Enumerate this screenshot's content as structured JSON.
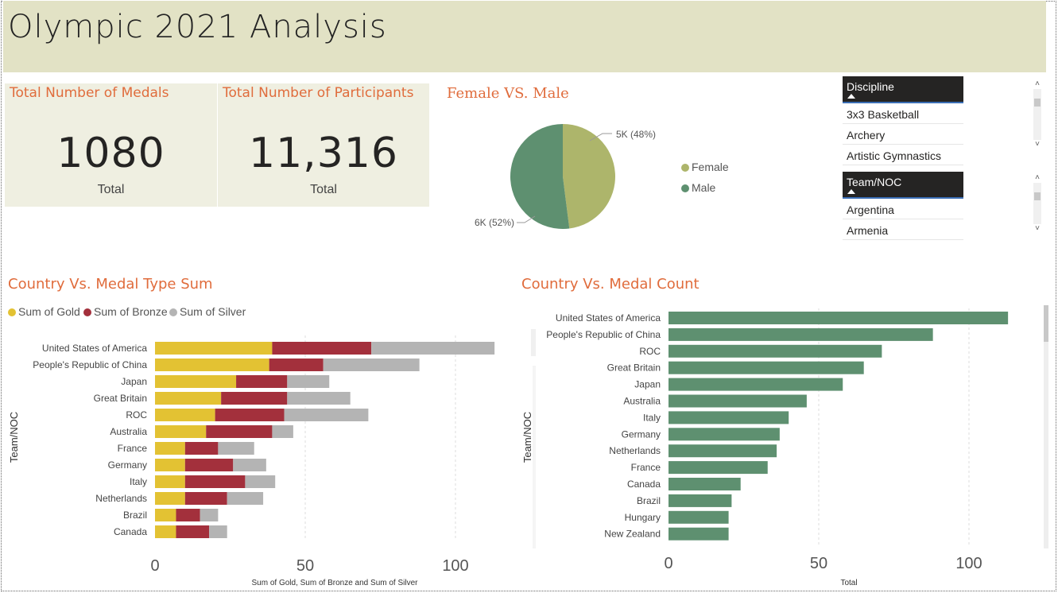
{
  "title": "Olympic 2021 Analysis",
  "cards": [
    {
      "title": "Total Number of Medals",
      "value": "1080",
      "label": "Total"
    },
    {
      "title": "Total Number of Participants",
      "value": "11,316",
      "label": "Total"
    }
  ],
  "pie": {
    "title": "Female VS. Male",
    "female_label": "5K (48%)",
    "male_label": "6K (52%)",
    "legend": [
      "Female",
      "Male"
    ],
    "colors": {
      "female": "#adb56b",
      "male": "#5e9070"
    }
  },
  "slicers": {
    "discipline": {
      "header": "Discipline",
      "items": [
        "3x3 Basketball",
        "Archery",
        "Artistic Gymnastics"
      ]
    },
    "team": {
      "header": "Team/NOC",
      "items": [
        "Argentina",
        "Armenia"
      ]
    }
  },
  "stacked": {
    "title": "Country Vs. Medal Type Sum",
    "legend": [
      "Sum of Gold",
      "Sum of Bronze",
      "Sum of Silver"
    ],
    "ylabel": "Team/NOC",
    "xlabel": "Sum of Gold, Sum of Bronze and Sum of Silver",
    "ticks": [
      "0",
      "50",
      "100"
    ]
  },
  "count": {
    "title": "Country Vs. Medal Count",
    "ylabel": "Team/NOC",
    "xlabel": "Total",
    "ticks": [
      "0",
      "50",
      "100"
    ]
  },
  "chart_data": [
    {
      "type": "pie",
      "title": "Female VS. Male",
      "categories": [
        "Female",
        "Male"
      ],
      "values": [
        48,
        52
      ],
      "colors": [
        "#adb56b",
        "#5e9070"
      ],
      "legend_position": "right"
    },
    {
      "type": "bar",
      "orientation": "horizontal",
      "stacked": true,
      "title": "Country Vs. Medal Type Sum",
      "xlabel": "Sum of Gold, Sum of Bronze and Sum of Silver",
      "ylabel": "Team/NOC",
      "xlim": [
        0,
        120
      ],
      "categories": [
        "United States of America",
        "People's Republic of China",
        "Japan",
        "Great Britain",
        "ROC",
        "Australia",
        "France",
        "Germany",
        "Italy",
        "Netherlands",
        "Brazil",
        "Canada"
      ],
      "series": [
        {
          "name": "Sum of Gold",
          "color": "#e3c233",
          "values": [
            39,
            38,
            27,
            22,
            20,
            17,
            10,
            10,
            10,
            10,
            7,
            7
          ]
        },
        {
          "name": "Sum of Bronze",
          "color": "#a3303c",
          "values": [
            33,
            18,
            17,
            22,
            23,
            22,
            11,
            16,
            20,
            14,
            8,
            11
          ]
        },
        {
          "name": "Sum of Silver",
          "color": "#b4b4b4",
          "values": [
            41,
            32,
            14,
            21,
            28,
            7,
            12,
            11,
            10,
            12,
            6,
            6
          ]
        }
      ],
      "legend_position": "top-left"
    },
    {
      "type": "bar",
      "orientation": "horizontal",
      "title": "Country Vs. Medal Count",
      "xlabel": "Total",
      "ylabel": "Team/NOC",
      "xlim": [
        0,
        120
      ],
      "color": "#5e9070",
      "categories": [
        "United States of America",
        "People's Republic of China",
        "ROC",
        "Great Britain",
        "Japan",
        "Australia",
        "Italy",
        "Germany",
        "Netherlands",
        "France",
        "Canada",
        "Brazil",
        "Hungary",
        "New Zealand"
      ],
      "values": [
        113,
        88,
        71,
        65,
        58,
        46,
        40,
        37,
        36,
        33,
        24,
        21,
        20,
        20
      ]
    }
  ]
}
